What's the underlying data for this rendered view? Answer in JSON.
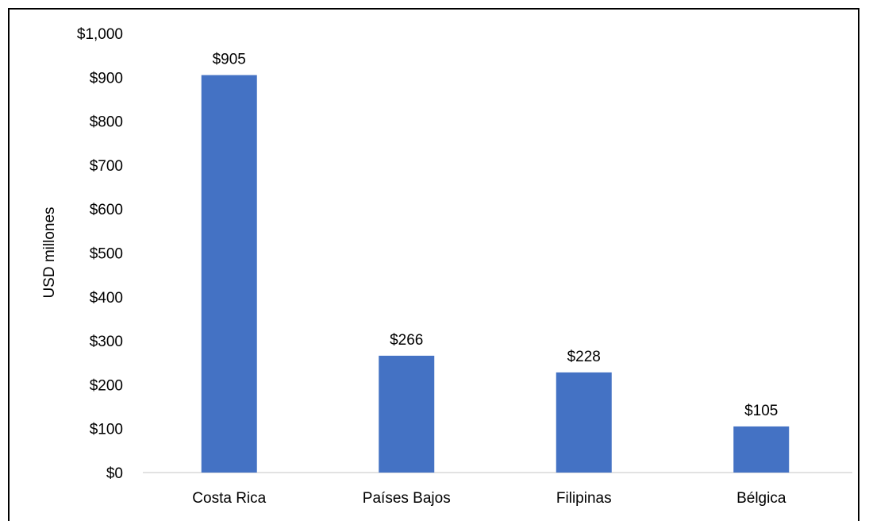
{
  "chart_data": {
    "type": "bar",
    "categories": [
      "Costa Rica",
      "Países Bajos",
      "Filipinas",
      "Bélgica"
    ],
    "values": [
      905,
      266,
      228,
      105
    ],
    "data_labels": [
      "$905",
      "$266",
      "$228",
      "$105"
    ],
    "ylabel": "USD millones",
    "ylim": [
      0,
      1000
    ],
    "yticks": [
      0,
      100,
      200,
      300,
      400,
      500,
      600,
      700,
      800,
      900,
      1000
    ],
    "ytick_labels": [
      "$0",
      "$100",
      "$200",
      "$300",
      "$400",
      "$500",
      "$600",
      "$700",
      "$800",
      "$900",
      "$1,000"
    ],
    "grid": false,
    "bar_color": "#4472C4",
    "axis_color": "#D9D9D9"
  }
}
